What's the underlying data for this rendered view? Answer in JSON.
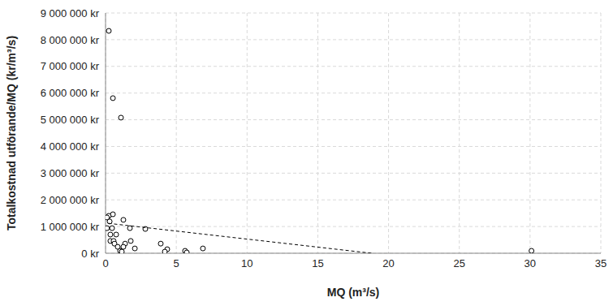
{
  "chart_data": {
    "type": "scatter",
    "x_label": "MQ (m³/s)",
    "y_label": "Totalkostnad utförande/MQ (kr/m³/s)",
    "xlim": [
      0,
      35
    ],
    "xticks": [
      0,
      5,
      10,
      15,
      20,
      25,
      30,
      35
    ],
    "ylim": [
      0,
      9000000
    ],
    "yticks": [
      {
        "value": 0,
        "label": "0 kr"
      },
      {
        "value": 1000000,
        "label": "1 000 000 kr"
      },
      {
        "value": 2000000,
        "label": "2 000 000 kr"
      },
      {
        "value": 3000000,
        "label": "3 000 000 kr"
      },
      {
        "value": 4000000,
        "label": "4 000 000 kr"
      },
      {
        "value": 5000000,
        "label": "5 000 000 kr"
      },
      {
        "value": 6000000,
        "label": "6 000 000 kr"
      },
      {
        "value": 7000000,
        "label": "7 000 000 kr"
      },
      {
        "value": 8000000,
        "label": "8 000 000 kr"
      },
      {
        "value": 9000000,
        "label": "9 000 000 kr"
      }
    ],
    "grid": true,
    "series": [
      {
        "type": "scatter",
        "marker": "circle",
        "color": "#000000",
        "x": [
          0.23,
          0.52,
          1.09,
          0.23,
          0.52,
          0.1,
          0.29,
          1.26,
          0.1,
          0.46,
          1.72,
          2.81,
          0.34,
          0.75,
          0.34,
          0.57,
          1.78,
          0.63,
          1.38,
          3.9,
          0.86,
          1.26,
          2.07,
          4.36,
          6.88,
          1.03,
          1.15,
          5.62,
          5.74,
          4.19,
          30.1
        ],
        "values": [
          8330000,
          5810000,
          5080000,
          1400000,
          1460000,
          1340000,
          1190000,
          1250000,
          940000,
          940000,
          940000,
          910000,
          700000,
          700000,
          460000,
          460000,
          460000,
          360000,
          360000,
          360000,
          240000,
          240000,
          180000,
          150000,
          180000,
          90000,
          60000,
          90000,
          30000,
          60000,
          90000
        ]
      },
      {
        "type": "line",
        "line_style": "dashed",
        "color": "#000000",
        "x": [
          0.2,
          18.8
        ],
        "values": [
          1120000,
          0
        ]
      }
    ]
  }
}
